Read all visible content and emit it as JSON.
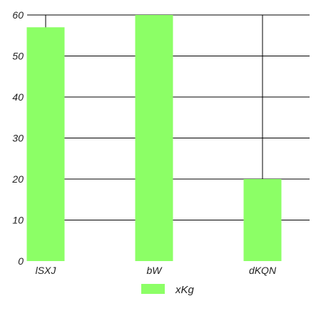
{
  "chart_data": {
    "type": "bar",
    "categories": [
      "lSXJ",
      "bW",
      "dKQN"
    ],
    "series": [
      {
        "name": "xKg",
        "values": [
          57,
          60,
          20
        ],
        "color": "#8cff66"
      }
    ],
    "ylim": [
      0,
      60
    ],
    "yticks": [
      "0",
      "10",
      "20",
      "30",
      "40",
      "50",
      "60"
    ],
    "grid": true,
    "legend_position": "bottom"
  }
}
